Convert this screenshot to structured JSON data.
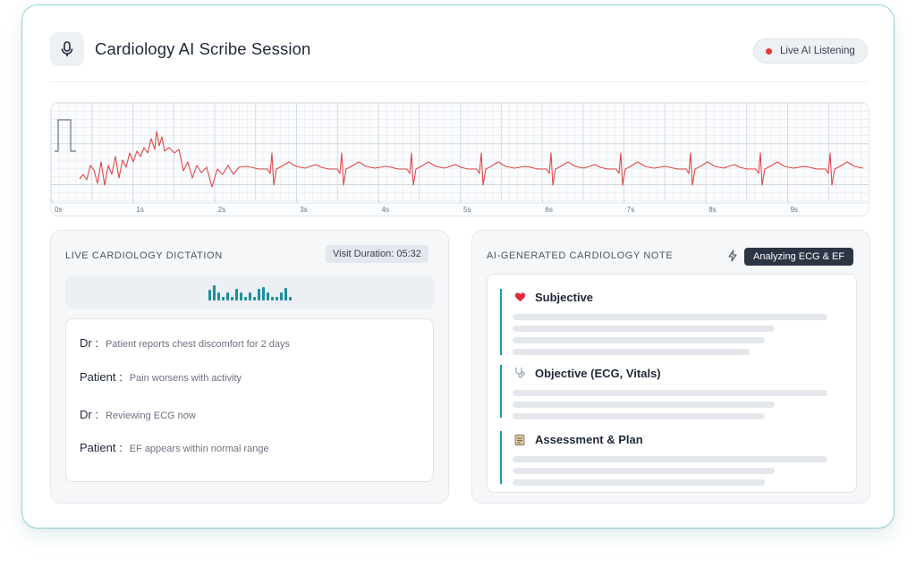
{
  "header": {
    "title": "Cardiology AI Scribe Session",
    "live_label": "Live AI Listening",
    "live_color": "#e23a3a",
    "mic_icon": "microphone-icon"
  },
  "ecg": {
    "trace_color": "#e04848",
    "time_labels": [
      "0s",
      "1s",
      "2s",
      "3s",
      "4s",
      "5s",
      "6s",
      "7s",
      "8s",
      "9s"
    ]
  },
  "dictation": {
    "title": "LIVE CARDIOLOGY DICTATION",
    "duration_label": "Visit Duration: 05:32",
    "waveform_color": "#1a8f9c",
    "lines": [
      {
        "speaker": "Dr :",
        "text": "Patient reports chest discomfort for 2 days"
      },
      {
        "speaker": "Patient :",
        "text": "Pain worsens with activity"
      },
      {
        "speaker": "Dr :",
        "text": "Reviewing ECG now"
      },
      {
        "speaker": "Patient :",
        "text": "EF appears within normal range"
      }
    ]
  },
  "note": {
    "title": "AI-GENERATED CARDIOLOGY NOTE",
    "status_label": "Analyzing ECG & EF",
    "status_icon": "lightning-icon",
    "accent_color": "#1a9aa6",
    "sections": [
      {
        "icon": "heart-icon",
        "label": "Subjective"
      },
      {
        "icon": "stethoscope-icon",
        "label": "Objective (ECG, Vitals)"
      },
      {
        "icon": "clipboard-icon",
        "label": "Assessment & Plan"
      }
    ]
  }
}
